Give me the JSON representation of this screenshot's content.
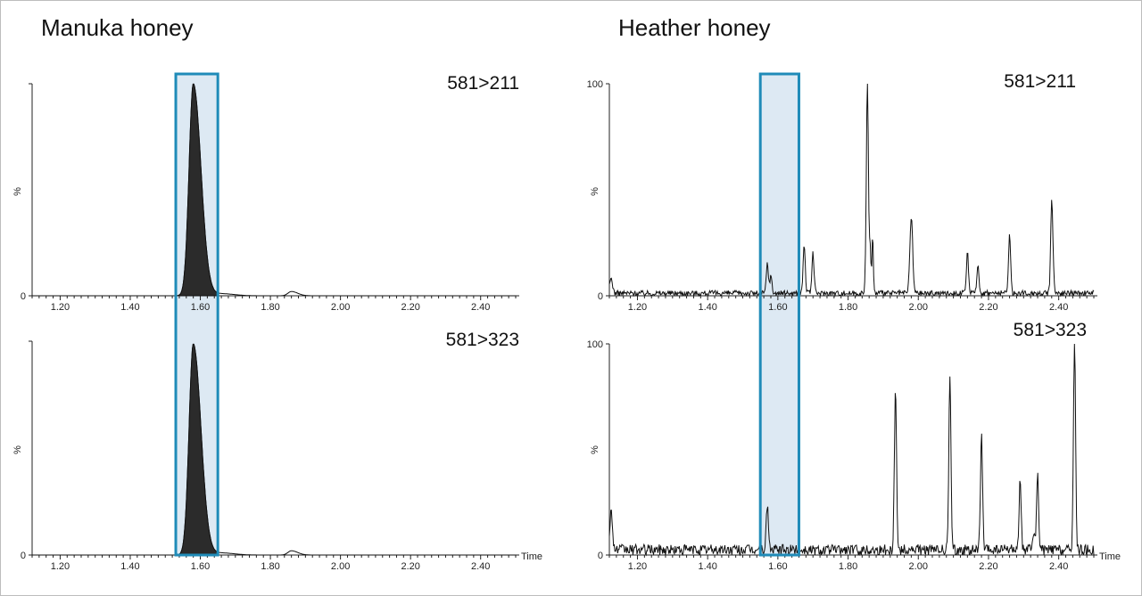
{
  "panels": [
    {
      "title": "Manuka honey"
    },
    {
      "title": "Heather honey"
    }
  ],
  "colors": {
    "highlight_border": "#1f8bb8",
    "highlight_fill": "#dde9f3",
    "trace": "#111111",
    "peak_fill": "#2b2b2b"
  },
  "chart_data": [
    {
      "type": "line",
      "title": "581>211",
      "panel": "Manuka honey",
      "xlabel": "",
      "ylabel": "%",
      "xlim": [
        1.12,
        2.5
      ],
      "ylim": [
        0,
        100
      ],
      "x_ticks": [
        "1.20",
        "1.40",
        "1.60",
        "1.80",
        "2.00",
        "2.20",
        "2.40"
      ],
      "y_ticks": [
        "0"
      ],
      "highlight_range": [
        1.53,
        1.65
      ],
      "filled": true,
      "peaks": [
        [
          1.58,
          100,
          0.012
        ],
        [
          1.86,
          2,
          0.01
        ],
        [
          1.66,
          1,
          0.02
        ]
      ],
      "noise": 0
    },
    {
      "type": "line",
      "title": "581>323",
      "panel": "Manuka honey",
      "xlabel": "Time",
      "ylabel": "%",
      "xlim": [
        1.12,
        2.5
      ],
      "ylim": [
        0,
        100
      ],
      "x_ticks": [
        "1.20",
        "1.40",
        "1.60",
        "1.80",
        "2.00",
        "2.20",
        "2.40"
      ],
      "y_ticks": [
        "0"
      ],
      "highlight_range": [
        1.53,
        1.65
      ],
      "filled": true,
      "peaks": [
        [
          1.58,
          100,
          0.012
        ],
        [
          1.86,
          2,
          0.01
        ],
        [
          1.66,
          1,
          0.02
        ]
      ],
      "noise": 0
    },
    {
      "type": "line",
      "title": "581>211",
      "panel": "Heather honey",
      "xlabel": "",
      "ylabel": "%",
      "xlim": [
        1.12,
        2.5
      ],
      "ylim": [
        0,
        100
      ],
      "x_ticks": [
        "1.20",
        "1.40",
        "1.60",
        "1.80",
        "2.00",
        "2.20",
        "2.40"
      ],
      "y_ticks": [
        "0",
        "100"
      ],
      "highlight_range": [
        1.55,
        1.66
      ],
      "filled": false,
      "peaks": [
        [
          1.855,
          100,
          0.003
        ],
        [
          1.863,
          22,
          0.002
        ],
        [
          1.87,
          27,
          0.002
        ],
        [
          1.98,
          36,
          0.004
        ],
        [
          1.675,
          23,
          0.003
        ],
        [
          1.7,
          19,
          0.003
        ],
        [
          2.14,
          19,
          0.003
        ],
        [
          2.17,
          13,
          0.003
        ],
        [
          2.26,
          28,
          0.003
        ],
        [
          2.38,
          43,
          0.003
        ],
        [
          1.57,
          14,
          0.003
        ],
        [
          1.58,
          8,
          0.003
        ],
        [
          2.385,
          5,
          0.003
        ],
        [
          1.125,
          7,
          0.004
        ]
      ],
      "noise": 2.5
    },
    {
      "type": "line",
      "title": "581>323",
      "panel": "Heather honey",
      "xlabel": "Time",
      "ylabel": "%",
      "xlim": [
        1.12,
        2.5
      ],
      "ylim": [
        0,
        100
      ],
      "x_ticks": [
        "1.20",
        "1.40",
        "1.60",
        "1.80",
        "2.00",
        "2.20",
        "2.40"
      ],
      "y_ticks": [
        "0",
        "100"
      ],
      "highlight_range": [
        1.55,
        1.66
      ],
      "filled": false,
      "peaks": [
        [
          1.935,
          78,
          0.003
        ],
        [
          2.09,
          82,
          0.003
        ],
        [
          2.18,
          54,
          0.003
        ],
        [
          2.29,
          32,
          0.003
        ],
        [
          2.34,
          35,
          0.003
        ],
        [
          2.445,
          100,
          0.003
        ],
        [
          1.57,
          22,
          0.003
        ],
        [
          1.125,
          18,
          0.004
        ],
        [
          2.33,
          8,
          0.003
        ]
      ],
      "noise": 5
    }
  ]
}
